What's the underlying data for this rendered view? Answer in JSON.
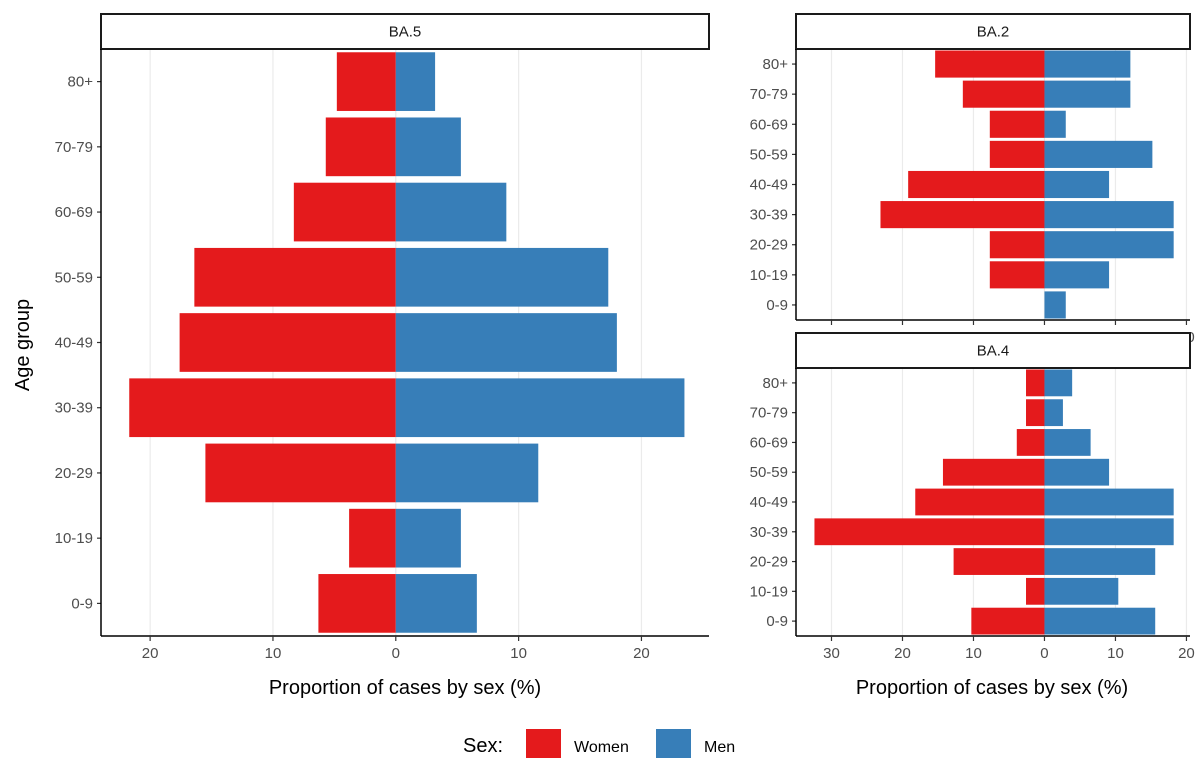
{
  "colors": {
    "women": "#e41a1c",
    "men": "#377eb8",
    "grid": "#ebebeb",
    "axis": "#000000"
  },
  "chart_data": {
    "type": "bar",
    "orientation": "horizontal",
    "layout": "population pyramid, faceted",
    "categories": [
      "0-9",
      "10-19",
      "20-29",
      "30-39",
      "40-49",
      "50-59",
      "60-69",
      "70-79",
      "80+"
    ],
    "xlabel": "Proportion of cases by sex (%)",
    "ylabel": "Age group",
    "legend": {
      "title": "Sex:",
      "position": "bottom",
      "entries": [
        "Women",
        "Men"
      ]
    },
    "grid": "vertical major gridlines",
    "facets": [
      {
        "label": "BA.5",
        "xlim": [
          -24,
          25.5
        ],
        "x_ticks": [
          -20,
          -10,
          0,
          10,
          20
        ],
        "x_tick_labels": [
          "20",
          "10",
          "0",
          "10",
          "20"
        ],
        "series": [
          {
            "name": "Women",
            "values": [
              6.3,
              3.8,
              15.5,
              21.7,
              17.6,
              16.4,
              8.3,
              5.7,
              4.8
            ]
          },
          {
            "name": "Men",
            "values": [
              6.6,
              5.3,
              11.6,
              23.5,
              18.0,
              17.3,
              9.0,
              5.3,
              3.2
            ]
          }
        ]
      },
      {
        "label": "BA.2",
        "xlim": [
          -35,
          20.5
        ],
        "x_ticks": [
          -30,
          -20,
          -10,
          0,
          10,
          20
        ],
        "x_tick_labels": [
          "30",
          "20",
          "10",
          "0",
          "10",
          "20"
        ],
        "series": [
          {
            "name": "Women",
            "values": [
              0,
              7.7,
              7.7,
              23.1,
              19.2,
              7.7,
              7.7,
              11.5,
              15.4
            ]
          },
          {
            "name": "Men",
            "values": [
              3.0,
              9.1,
              18.2,
              18.2,
              9.1,
              15.2,
              3.0,
              12.1,
              12.1
            ]
          }
        ]
      },
      {
        "label": "BA.4",
        "xlim": [
          -35,
          20.5
        ],
        "x_ticks": [
          -30,
          -20,
          -10,
          0,
          10,
          20
        ],
        "x_tick_labels": [
          "30",
          "20",
          "10",
          "0",
          "10",
          "20"
        ],
        "series": [
          {
            "name": "Women",
            "values": [
              10.3,
              2.6,
              12.8,
              32.4,
              18.2,
              14.3,
              3.9,
              2.6,
              2.6
            ]
          },
          {
            "name": "Men",
            "values": [
              15.6,
              10.4,
              15.6,
              18.2,
              18.2,
              9.1,
              6.5,
              2.6,
              3.9
            ]
          }
        ]
      }
    ]
  }
}
